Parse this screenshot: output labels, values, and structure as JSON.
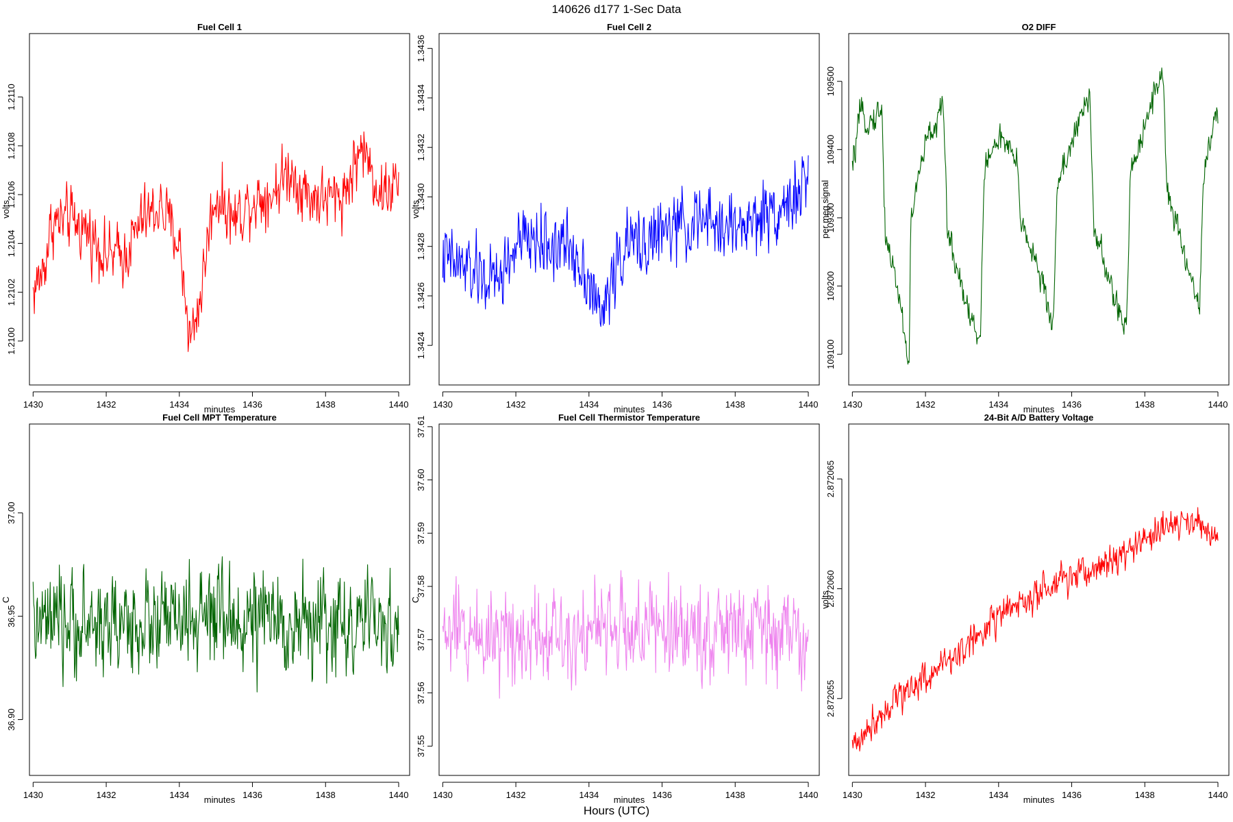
{
  "figure": {
    "title": "140626   d177   1-Sec Data",
    "xlabel": "Hours (UTC)"
  },
  "chart_data": [
    {
      "type": "line",
      "title": "Fuel Cell 1",
      "xlabel": "minutes",
      "ylabel": "volts",
      "color": "#ff0000",
      "xlim": [
        1429.9,
        1440.3
      ],
      "ylim": [
        1.20982,
        1.21126
      ],
      "x_ticks": [
        "1430",
        "1432",
        "1434",
        "1436",
        "1438",
        "1440"
      ],
      "y_ticks": [
        "1.2100",
        "1.2102",
        "1.2104",
        "1.2106",
        "1.2108",
        "1.2110"
      ],
      "series": [
        {
          "name": "Fuel Cell 1",
          "x_start": 1430.0,
          "x_end": 1440.0,
          "noise": 0.00018,
          "anchors": [
            [
              1430.0,
              1.2102
            ],
            [
              1430.3,
              1.2103
            ],
            [
              1430.5,
              1.21048
            ],
            [
              1431.0,
              1.2105
            ],
            [
              1431.5,
              1.21045
            ],
            [
              1432.0,
              1.21035
            ],
            [
              1432.5,
              1.21035
            ],
            [
              1433.0,
              1.2105
            ],
            [
              1433.5,
              1.21055
            ],
            [
              1434.0,
              1.2104
            ],
            [
              1434.3,
              1.21
            ],
            [
              1434.6,
              1.2102
            ],
            [
              1434.8,
              1.21045
            ],
            [
              1435.0,
              1.2106
            ],
            [
              1435.5,
              1.2105
            ],
            [
              1436.0,
              1.21058
            ],
            [
              1436.5,
              1.2106
            ],
            [
              1437.0,
              1.2107
            ],
            [
              1437.5,
              1.2106
            ],
            [
              1438.0,
              1.21058
            ],
            [
              1438.5,
              1.2106
            ],
            [
              1439.0,
              1.2108
            ],
            [
              1439.5,
              1.2106
            ],
            [
              1440.0,
              1.21065
            ]
          ]
        }
      ]
    },
    {
      "type": "line",
      "title": "Fuel Cell 2",
      "xlabel": "minutes",
      "ylabel": "volts",
      "color": "#0000ff",
      "xlim": [
        1429.9,
        1440.3
      ],
      "ylim": [
        1.34224,
        1.34366
      ],
      "x_ticks": [
        "1430",
        "1432",
        "1434",
        "1436",
        "1438",
        "1440"
      ],
      "y_ticks": [
        "1.3424",
        "1.3426",
        "1.3428",
        "1.3430",
        "1.3432",
        "1.3434",
        "1.3436"
      ],
      "series": [
        {
          "name": "Fuel Cell 2",
          "x_start": 1430.0,
          "x_end": 1440.0,
          "noise": 0.0002,
          "anchors": [
            [
              1430.0,
              1.34275
            ],
            [
              1430.5,
              1.34272
            ],
            [
              1431.0,
              1.34268
            ],
            [
              1431.5,
              1.34265
            ],
            [
              1432.0,
              1.3428
            ],
            [
              1432.5,
              1.34283
            ],
            [
              1433.0,
              1.3428
            ],
            [
              1433.5,
              1.3428
            ],
            [
              1434.0,
              1.34268
            ],
            [
              1434.3,
              1.3425
            ],
            [
              1434.7,
              1.3427
            ],
            [
              1435.0,
              1.3428
            ],
            [
              1435.5,
              1.34282
            ],
            [
              1436.0,
              1.34285
            ],
            [
              1436.5,
              1.34288
            ],
            [
              1437.0,
              1.3429
            ],
            [
              1437.5,
              1.34288
            ],
            [
              1438.0,
              1.34288
            ],
            [
              1438.5,
              1.3429
            ],
            [
              1439.0,
              1.34295
            ],
            [
              1439.5,
              1.34298
            ],
            [
              1440.0,
              1.34305
            ]
          ]
        }
      ]
    },
    {
      "type": "line",
      "title": "O2 DIFF",
      "xlabel": "minutes",
      "ylabel": "per meg signal",
      "color": "#006400",
      "xlim": [
        1429.9,
        1440.3
      ],
      "ylim": [
        109055,
        109570
      ],
      "x_ticks": [
        "1430",
        "1432",
        "1434",
        "1436",
        "1438",
        "1440"
      ],
      "y_ticks": [
        "109100",
        "109200",
        "109300",
        "109400",
        "109500"
      ],
      "series": [
        {
          "name": "O2 DIFF",
          "x_start": 1430.0,
          "x_end": 1440.0,
          "noise": 30,
          "anchors": [
            [
              1430.0,
              109370
            ],
            [
              1430.2,
              109450
            ],
            [
              1430.5,
              109440
            ],
            [
              1430.8,
              109460
            ],
            [
              1430.9,
              109280
            ],
            [
              1431.3,
              109180
            ],
            [
              1431.55,
              109080
            ],
            [
              1431.6,
              109300
            ],
            [
              1432.0,
              109410
            ],
            [
              1432.5,
              109460
            ],
            [
              1432.6,
              109280
            ],
            [
              1433.0,
              109200
            ],
            [
              1433.5,
              109110
            ],
            [
              1433.6,
              109370
            ],
            [
              1434.0,
              109420
            ],
            [
              1434.5,
              109380
            ],
            [
              1434.6,
              109300
            ],
            [
              1435.0,
              109240
            ],
            [
              1435.5,
              109140
            ],
            [
              1435.6,
              109350
            ],
            [
              1436.0,
              109410
            ],
            [
              1436.5,
              109480
            ],
            [
              1436.6,
              109290
            ],
            [
              1437.0,
              109210
            ],
            [
              1437.5,
              109130
            ],
            [
              1437.6,
              109360
            ],
            [
              1438.0,
              109440
            ],
            [
              1438.5,
              109520
            ],
            [
              1438.6,
              109340
            ],
            [
              1439.0,
              109260
            ],
            [
              1439.5,
              109170
            ],
            [
              1439.6,
              109360
            ],
            [
              1439.8,
              109420
            ],
            [
              1440.0,
              109450
            ]
          ]
        }
      ]
    },
    {
      "type": "line",
      "title": "Fuel Cell MPT Temperature",
      "xlabel": "minutes",
      "ylabel": "C",
      "color": "#006400",
      "xlim": [
        1429.9,
        1440.3
      ],
      "ylim": [
        36.873,
        37.043
      ],
      "x_ticks": [
        "1430",
        "1432",
        "1434",
        "1436",
        "1438",
        "1440"
      ],
      "y_ticks": [
        "36.90",
        "36.95",
        "37.00"
      ],
      "series": [
        {
          "name": "Fuel Cell MPT Temperature",
          "x_start": 1430.0,
          "x_end": 1440.0,
          "noise": 0.035,
          "anchors": [
            [
              1430.0,
              36.945
            ],
            [
              1435.0,
              36.948
            ],
            [
              1440.0,
              36.945
            ]
          ]
        }
      ]
    },
    {
      "type": "line",
      "title": "Fuel Cell Thermistor Temperature",
      "xlabel": "minutes",
      "ylabel": "C",
      "color": "#ee82ee",
      "xlim": [
        1429.9,
        1440.3
      ],
      "ylim": [
        37.5445,
        37.6105
      ],
      "x_ticks": [
        "1430",
        "1432",
        "1434",
        "1436",
        "1438",
        "1440"
      ],
      "y_ticks": [
        "37.55",
        "37.56",
        "37.57",
        "37.58",
        "37.59",
        "37.60",
        "37.61"
      ],
      "series": [
        {
          "name": "Fuel Cell Thermistor Temperature",
          "x_start": 1430.0,
          "x_end": 1440.0,
          "noise": 0.013,
          "anchors": [
            [
              1430.0,
              37.571
            ],
            [
              1435.0,
              37.572
            ],
            [
              1440.0,
              37.571
            ]
          ]
        }
      ]
    },
    {
      "type": "line",
      "title": "24-Bit A/D Battery Voltage",
      "xlabel": "minutes",
      "ylabel": "volts",
      "color": "#ff0000",
      "xlim": [
        1429.9,
        1440.3
      ],
      "ylim": [
        2.8720515,
        2.8720675
      ],
      "x_ticks": [
        "1430",
        "1432",
        "1434",
        "1436",
        "1438",
        "1440"
      ],
      "y_ticks": [
        "2.872055",
        "2.872060",
        "2.872065"
      ],
      "series": [
        {
          "name": "24-Bit A/D Battery Voltage",
          "x_start": 1430.0,
          "x_end": 1440.0,
          "noise": 1.1e-06,
          "anchors": [
            [
              1430.0,
              2.8720528
            ],
            [
              1431.0,
              2.8720548
            ],
            [
              1432.0,
              2.872056
            ],
            [
              1433.0,
              2.8720572
            ],
            [
              1434.0,
              2.8720588
            ],
            [
              1435.0,
              2.8720596
            ],
            [
              1436.0,
              2.8720605
            ],
            [
              1437.0,
              2.8720612
            ],
            [
              1438.0,
              2.8720622
            ],
            [
              1439.0,
              2.8720632
            ],
            [
              1439.5,
              2.8720628
            ],
            [
              1440.0,
              2.8720625
            ]
          ]
        }
      ]
    }
  ]
}
